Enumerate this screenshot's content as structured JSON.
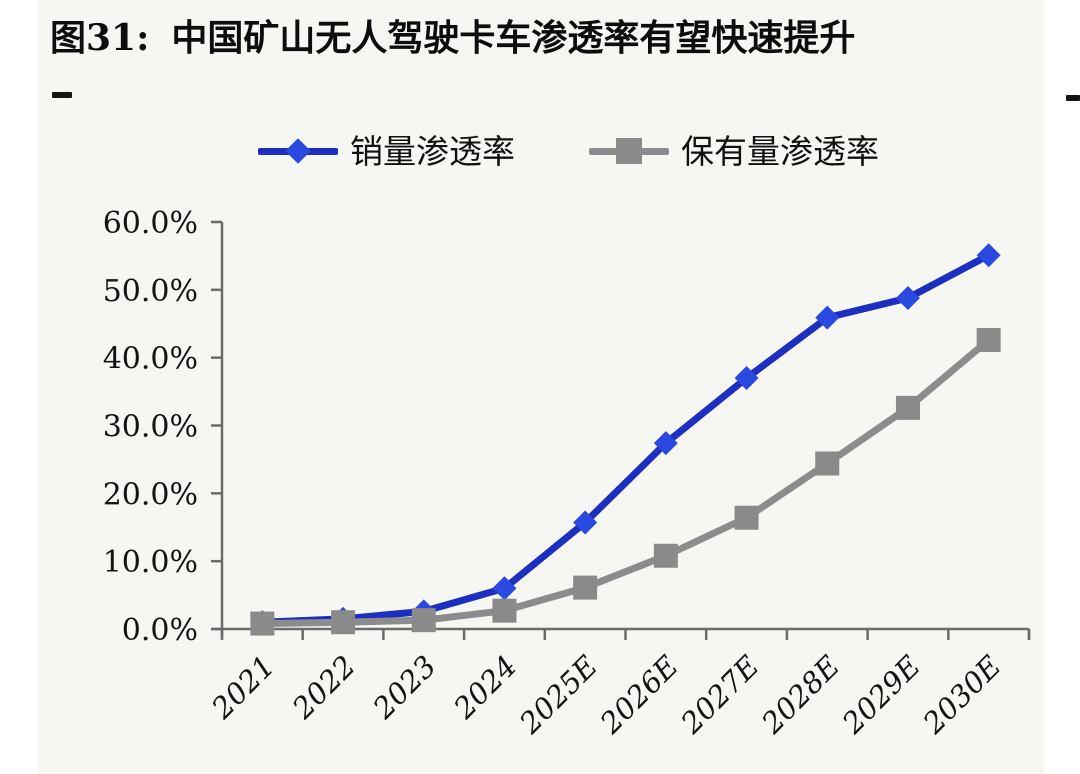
{
  "figure": {
    "label": "图31:",
    "title": "中国矿山无人驾驶卡车渗透率有望快速提升"
  },
  "chart_data": {
    "type": "line",
    "title": "图31: 中国矿山无人驾驶卡车渗透率有望快速提升",
    "categories": [
      "2021",
      "2022",
      "2023",
      "2024",
      "2025E",
      "2026E",
      "2027E",
      "2028E",
      "2029E",
      "2030E"
    ],
    "series": [
      {
        "name": "销量渗透率",
        "marker": "diamond",
        "color": "#1c2fc0",
        "marker_color": "#2a49e0",
        "values": [
          1.0,
          1.5,
          2.6,
          6.0,
          15.7,
          27.4,
          37.0,
          45.9,
          48.8,
          55.1
        ]
      },
      {
        "name": "保有量渗透率",
        "marker": "square",
        "color": "#8c8c8c",
        "marker_color": "#8a8a8a",
        "values": [
          0.8,
          1.0,
          1.3,
          2.7,
          6.1,
          10.8,
          16.4,
          24.4,
          32.6,
          42.6
        ]
      }
    ],
    "ylim": [
      0,
      60
    ],
    "y_tick_step": 10,
    "y_tick_labels": [
      "0.0%",
      "10.0%",
      "20.0%",
      "30.0%",
      "40.0%",
      "50.0%",
      "60.0%"
    ],
    "xlabel": "",
    "ylabel": "",
    "grid": false,
    "legend_position": "top-center"
  },
  "colors": {
    "axis": "#6b6b6b",
    "text": "#141414",
    "background": "#f6f6f3",
    "series_sales": "#1c2fc0",
    "series_ownership": "#8c8c8c"
  }
}
